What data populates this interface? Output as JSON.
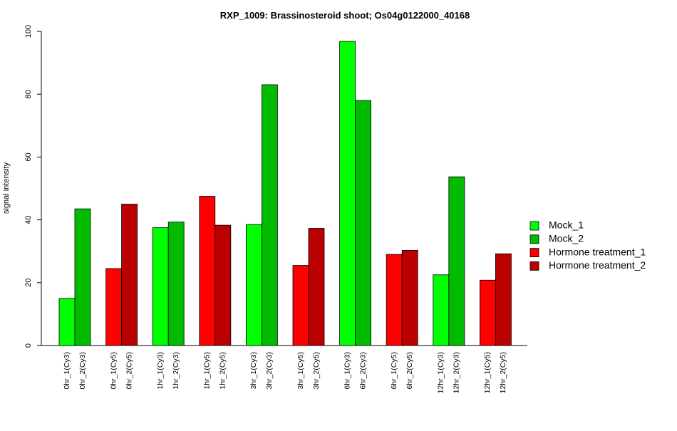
{
  "chart_data": {
    "type": "bar",
    "title": "RXP_1009: Brassinosteroid shoot; Os04g0122000_40168",
    "xlabel": "",
    "ylabel": "signal intensity",
    "ylim": [
      0,
      100
    ],
    "yticks": [
      0,
      20,
      40,
      60,
      80,
      100
    ],
    "grid": false,
    "legend_position": "right",
    "legend": [
      {
        "label": "Mock_1",
        "color": "#00ff00"
      },
      {
        "label": "Mock_2",
        "color": "#00bb00"
      },
      {
        "label": "Hormone treatment_1",
        "color": "#ff0000"
      },
      {
        "label": "Hormone treatment_2",
        "color": "#bb0000"
      }
    ],
    "groups": [
      {
        "bars": [
          {
            "label": "0hr_1(Cy3)",
            "value": 15.0,
            "color": "#00ff00"
          },
          {
            "label": "0hr_2(Cy3)",
            "value": 43.5,
            "color": "#00bb00"
          }
        ]
      },
      {
        "bars": [
          {
            "label": "0hr_1(Cy5)",
            "value": 24.5,
            "color": "#ff0000"
          },
          {
            "label": "0hr_2(Cy5)",
            "value": 45.0,
            "color": "#bb0000"
          }
        ]
      },
      {
        "bars": [
          {
            "label": "1hr_1(Cy3)",
            "value": 37.5,
            "color": "#00ff00"
          },
          {
            "label": "1hr_2(Cy3)",
            "value": 39.3,
            "color": "#00bb00"
          }
        ]
      },
      {
        "bars": [
          {
            "label": "1hr_1(Cy5)",
            "value": 47.5,
            "color": "#ff0000"
          },
          {
            "label": "1hr_2(Cy5)",
            "value": 38.3,
            "color": "#bb0000"
          }
        ]
      },
      {
        "bars": [
          {
            "label": "3hr_1(Cy3)",
            "value": 38.5,
            "color": "#00ff00"
          },
          {
            "label": "3hr_2(Cy3)",
            "value": 83.0,
            "color": "#00bb00"
          }
        ]
      },
      {
        "bars": [
          {
            "label": "3hr_1(Cy5)",
            "value": 25.5,
            "color": "#ff0000"
          },
          {
            "label": "3hr_2(Cy5)",
            "value": 37.3,
            "color": "#bb0000"
          }
        ]
      },
      {
        "bars": [
          {
            "label": "6hr_1(Cy3)",
            "value": 96.8,
            "color": "#00ff00"
          },
          {
            "label": "6hr_2(Cy3)",
            "value": 78.0,
            "color": "#00bb00"
          }
        ]
      },
      {
        "bars": [
          {
            "label": "6hr_1(Cy5)",
            "value": 29.0,
            "color": "#ff0000"
          },
          {
            "label": "6hr_2(Cy5)",
            "value": 30.3,
            "color": "#bb0000"
          }
        ]
      },
      {
        "bars": [
          {
            "label": "12hr_1(Cy3)",
            "value": 22.5,
            "color": "#00ff00"
          },
          {
            "label": "12hr_2(Cy3)",
            "value": 53.7,
            "color": "#00bb00"
          }
        ]
      },
      {
        "bars": [
          {
            "label": "12hr_1(Cy5)",
            "value": 20.8,
            "color": "#ff0000"
          },
          {
            "label": "12hr_2(Cy5)",
            "value": 29.2,
            "color": "#bb0000"
          }
        ]
      }
    ]
  }
}
